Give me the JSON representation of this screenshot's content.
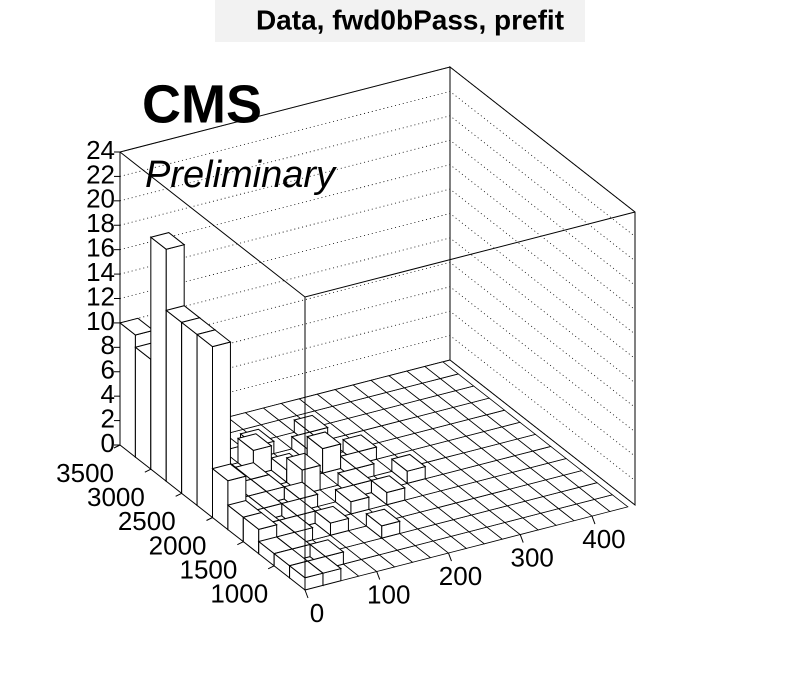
{
  "chart_data": {
    "type": "lego",
    "title": "Data, fwd0bPass, prefit",
    "label": "CMS",
    "sublabel": "Preliminary",
    "xbins": [
      0,
      25,
      50,
      75,
      100,
      125,
      150,
      175,
      200,
      225,
      250,
      275,
      300,
      325,
      350,
      375,
      400,
      425,
      450
    ],
    "ybins": [
      500,
      750,
      1000,
      1250,
      1500,
      1750,
      2000,
      2250,
      2500,
      2750,
      3000,
      3250,
      3500
    ],
    "values": [
      [
        1,
        1,
        0,
        0,
        0,
        0,
        0,
        0,
        0,
        0,
        0,
        0,
        0,
        0,
        0,
        0,
        0,
        0
      ],
      [
        1,
        0,
        1,
        0,
        0,
        0,
        0,
        0,
        0,
        0,
        0,
        0,
        0,
        0,
        0,
        0,
        0,
        0
      ],
      [
        1,
        1,
        0,
        0,
        0,
        0,
        1,
        0,
        0,
        0,
        0,
        0,
        0,
        0,
        0,
        0,
        0,
        0
      ],
      [
        2,
        1,
        1,
        0,
        1,
        0,
        0,
        0,
        0,
        0,
        0,
        0,
        0,
        0,
        0,
        0,
        0,
        0
      ],
      [
        2,
        1,
        0,
        1,
        0,
        0,
        1,
        0,
        1,
        0,
        0,
        0,
        0,
        0,
        0,
        0,
        0,
        0
      ],
      [
        4,
        1,
        1,
        0,
        1,
        0,
        0,
        1,
        0,
        0,
        1,
        0,
        0,
        0,
        0,
        0,
        0,
        0
      ],
      [
        14,
        0,
        1,
        1,
        0,
        2,
        0,
        0,
        1,
        0,
        0,
        0,
        0,
        0,
        0,
        0,
        0,
        0
      ],
      [
        14,
        0,
        0,
        1,
        0,
        1,
        0,
        2,
        0,
        1,
        0,
        0,
        0,
        0,
        0,
        0,
        0,
        0
      ],
      [
        14,
        0,
        1,
        0,
        2,
        0,
        0,
        1,
        0,
        0,
        0,
        0,
        0,
        0,
        0,
        0,
        0,
        0
      ],
      [
        19,
        0,
        0,
        0,
        0,
        1,
        0,
        0,
        1,
        0,
        0,
        0,
        0,
        0,
        0,
        0,
        0,
        0
      ],
      [
        9,
        0,
        0,
        0,
        0,
        0,
        0,
        0,
        0,
        0,
        0,
        0,
        0,
        0,
        0,
        0,
        0,
        0
      ],
      [
        10,
        0,
        0,
        0,
        0,
        0,
        0,
        0,
        0,
        0,
        0,
        0,
        0,
        0,
        0,
        0,
        0,
        0
      ]
    ],
    "color": "#ffffff",
    "xlim": [
      0,
      460
    ],
    "xticks": [
      0,
      100,
      200,
      300,
      400
    ],
    "ylim": [
      500,
      3500
    ],
    "yticks": [
      1000,
      1500,
      2000,
      2500,
      3000,
      3500
    ],
    "zlim": [
      0,
      24
    ],
    "zticks": [
      0,
      2,
      4,
      6,
      8,
      10,
      12,
      14,
      16,
      18,
      20,
      22,
      24
    ],
    "grid": true
  }
}
